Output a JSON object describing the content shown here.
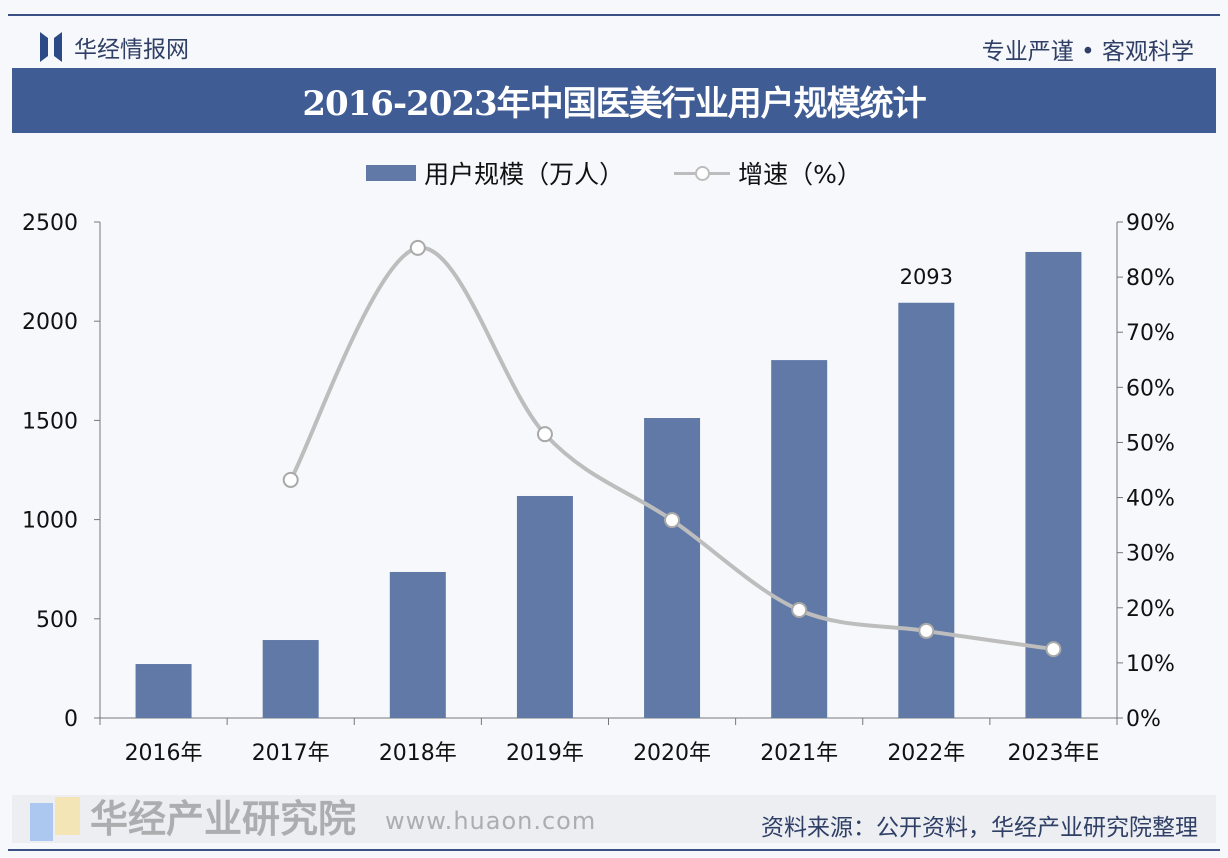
{
  "header": {
    "brand": "华经情报网",
    "slogan": "专业严谨 • 客观科学"
  },
  "source": "资料来源：公开资料，华经产业研究院整理",
  "watermark": {
    "name": "华经产业研究院",
    "url": "www.huaon.com"
  },
  "colors": {
    "bar": "#6179a6",
    "line": "#bdbdbd",
    "title_band": "#3f5c95"
  },
  "chart_data": {
    "type": "bar+line",
    "title": "2016-2023年中国医美行业用户规模统计",
    "categories": [
      "2016年",
      "2017年",
      "2018年",
      "2019年",
      "2020年",
      "2021年",
      "2022年",
      "2023年E"
    ],
    "series": [
      {
        "name": "用户规模（万人）",
        "type": "bar",
        "axis": "left",
        "values": [
          272,
          393,
          736,
          1119,
          1512,
          1804,
          2093,
          2349
        ]
      },
      {
        "name": "增速（%）",
        "type": "line",
        "axis": "right",
        "values": [
          null,
          43.2,
          85.3,
          51.5,
          35.9,
          19.6,
          15.8,
          12.5
        ]
      }
    ],
    "data_labels": [
      {
        "category": "2022年",
        "text": "2093"
      }
    ],
    "left_axis": {
      "ylim": [
        0,
        2500
      ],
      "ticks": [
        "0",
        "500",
        "1000",
        "1500",
        "2000",
        "2500"
      ]
    },
    "right_axis": {
      "ylim": [
        0,
        90
      ],
      "ticks": [
        "0%",
        "10%",
        "20%",
        "30%",
        "40%",
        "50%",
        "60%",
        "70%",
        "80%",
        "90%"
      ]
    },
    "legend": "top-center",
    "grid": false
  }
}
